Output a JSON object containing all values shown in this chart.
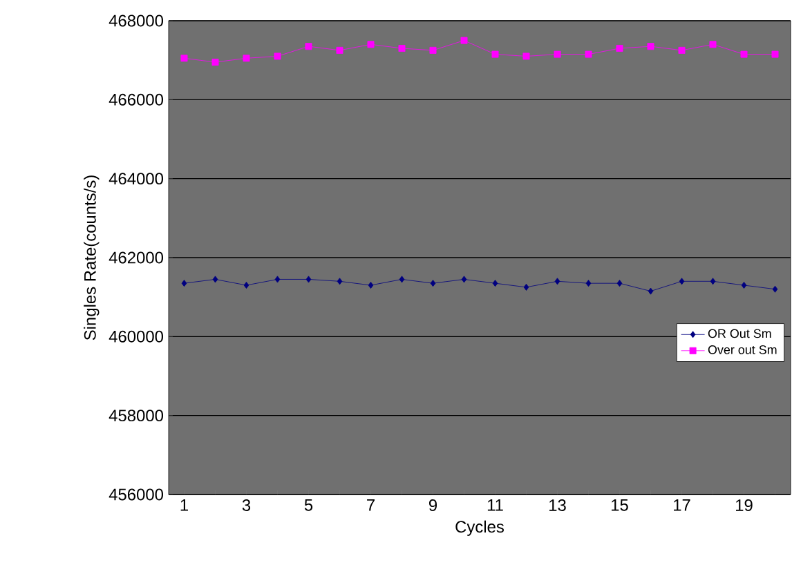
{
  "chart_data": {
    "type": "line",
    "xlabel": "Cycles",
    "ylabel": "Singles Rate(counts/s)",
    "categories": [
      "1",
      null,
      "3",
      null,
      "5",
      null,
      "7",
      null,
      "9",
      null,
      "11",
      null,
      "13",
      null,
      "15",
      null,
      "17",
      null,
      "19",
      null
    ],
    "series": [
      {
        "name": "OR Out Sm",
        "color": "#000080",
        "marker": "diamond",
        "values": [
          461350,
          461450,
          461300,
          461450,
          461450,
          461400,
          461300,
          461450,
          461350,
          461450,
          461350,
          461250,
          461400,
          461350,
          461350,
          461150,
          461400,
          461400,
          461300,
          461200
        ]
      },
      {
        "name": "Over out Sm",
        "color": "#ff00ff",
        "marker": "square",
        "values": [
          467050,
          466950,
          467050,
          467100,
          467350,
          467250,
          467400,
          467300,
          467250,
          467500,
          467150,
          467100,
          467150,
          467150,
          467300,
          467350,
          467250,
          467400,
          467150,
          467150
        ]
      }
    ],
    "ylim": [
      456000,
      468000
    ],
    "yticks": [
      456000,
      458000,
      460000,
      462000,
      464000,
      466000,
      468000
    ],
    "grid": "y",
    "legend": "right"
  }
}
